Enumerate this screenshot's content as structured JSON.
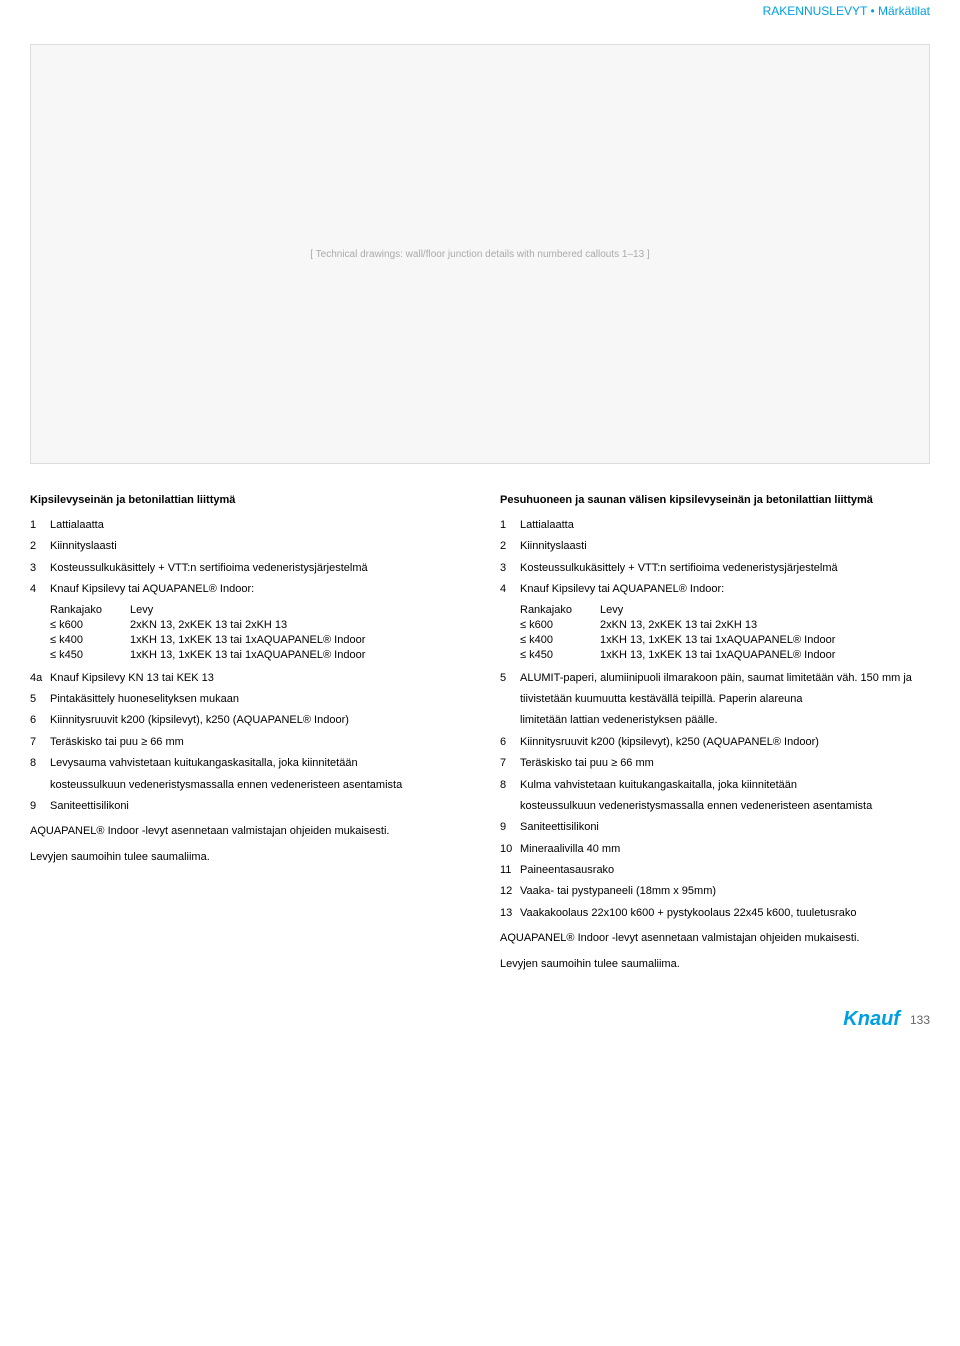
{
  "header": {
    "category": "RAKENNUSLEVYT",
    "subcategory": "Märkätilat"
  },
  "diagram_placeholder": "[ Technical drawings: wall/floor junction details with numbered callouts 1–13 ]",
  "left": {
    "title": "Kipsilevyseinän ja betonilattian liittymä",
    "items": [
      {
        "n": "1",
        "t": "Lattialaatta"
      },
      {
        "n": "2",
        "t": "Kiinnityslaasti"
      },
      {
        "n": "3",
        "t": "Kosteussulkukäsittely + VTT:n sertifioima vedeneristysjärjestelmä"
      },
      {
        "n": "4",
        "t": "Knauf Kipsilevy tai AQUAPANEL® Indoor:"
      }
    ],
    "table_header": {
      "c1": "Rankajako",
      "c2": "Levy"
    },
    "table_rows": [
      {
        "c1": "≤ k600",
        "c2": "2xKN 13, 2xKEK 13 tai 2xKH 13"
      },
      {
        "c1": "≤ k400",
        "c2": "1xKH 13, 1xKEK 13 tai 1xAQUAPANEL® Indoor"
      },
      {
        "c1": "≤ k450",
        "c2": "1xKH 13, 1xKEK 13 tai 1xAQUAPANEL® Indoor"
      }
    ],
    "items2": [
      {
        "n": "4a",
        "t": "Knauf Kipsilevy KN 13 tai KEK 13"
      },
      {
        "n": "5",
        "t": "Pintakäsittely huoneselityksen mukaan"
      },
      {
        "n": "6",
        "t": "Kiinnitysruuvit k200 (kipsilevyt), k250 (AQUAPANEL® Indoor)"
      },
      {
        "n": "7",
        "t": "Teräskisko tai puu ≥ 66 mm"
      },
      {
        "n": "8",
        "t": "Levysauma vahvistetaan kuitukangaskasitalla, joka kiinnitetään"
      }
    ],
    "item8_cont": "kosteussulkuun vedeneristysmassalla ennen vedeneristeen asentamista",
    "items3": [
      {
        "n": "9",
        "t": "Saniteettisilikoni"
      }
    ],
    "note1": "AQUAPANEL® Indoor -levyt asennetaan valmistajan ohjeiden mukaisesti.",
    "note2": "Levyjen saumoihin tulee saumaliima."
  },
  "right": {
    "title": "Pesuhuoneen ja saunan välisen kipsilevyseinän ja betonilattian liittymä",
    "items": [
      {
        "n": "1",
        "t": "Lattialaatta"
      },
      {
        "n": "2",
        "t": "Kiinnityslaasti"
      },
      {
        "n": "3",
        "t": "Kosteussulkukäsittely + VTT:n sertifioima vedeneristysjärjestelmä"
      },
      {
        "n": "4",
        "t": "Knauf Kipsilevy tai AQUAPANEL® Indoor:"
      }
    ],
    "table_header": {
      "c1": "Rankajako",
      "c2": "Levy"
    },
    "table_rows": [
      {
        "c1": "≤ k600",
        "c2": "2xKN 13, 2xKEK 13 tai 2xKH 13"
      },
      {
        "c1": "≤ k400",
        "c2": "1xKH 13, 1xKEK 13 tai 1xAQUAPANEL® Indoor"
      },
      {
        "c1": "≤ k450",
        "c2": "1xKH 13, 1xKEK 13 tai 1xAQUAPANEL® Indoor"
      }
    ],
    "items2": [
      {
        "n": "5",
        "t": "ALUMIT-paperi, alumiinipuoli ilmarakoon päin, saumat limitetään väh. 150 mm ja"
      }
    ],
    "item5_cont1": "tiivistetään kuumuutta kestävällä teipillä. Paperin alareuna",
    "item5_cont2": "limitetään lattian vedeneristyksen päälle.",
    "items3": [
      {
        "n": "6",
        "t": "Kiinnitysruuvit k200 (kipsilevyt), k250 (AQUAPANEL® Indoor)"
      },
      {
        "n": "7",
        "t": "Teräskisko tai puu ≥ 66 mm"
      },
      {
        "n": "8",
        "t": "Kulma vahvistetaan kuitukangaskaitalla, joka kiinnitetään"
      }
    ],
    "item8_cont": "kosteussulkuun vedeneristysmassalla ennen vedeneristeen asentamista",
    "items4": [
      {
        "n": "9",
        "t": "Saniteettisilikoni"
      },
      {
        "n": "10",
        "t": "Mineraalivilla 40 mm"
      },
      {
        "n": "11",
        "t": "Paineentasausrako"
      },
      {
        "n": "12",
        "t": "Vaaka- tai pystypaneeli (18mm x 95mm)"
      },
      {
        "n": "13",
        "t": "Vaakakoolaus 22x100 k600 + pystykoolaus 22x45 k600, tuuletusrako"
      }
    ],
    "note1": "AQUAPANEL® Indoor -levyt asennetaan valmistajan ohjeiden mukaisesti.",
    "note2": "Levyjen saumoihin tulee saumaliima."
  },
  "footer": {
    "logo": "Knauf",
    "page": "133"
  }
}
